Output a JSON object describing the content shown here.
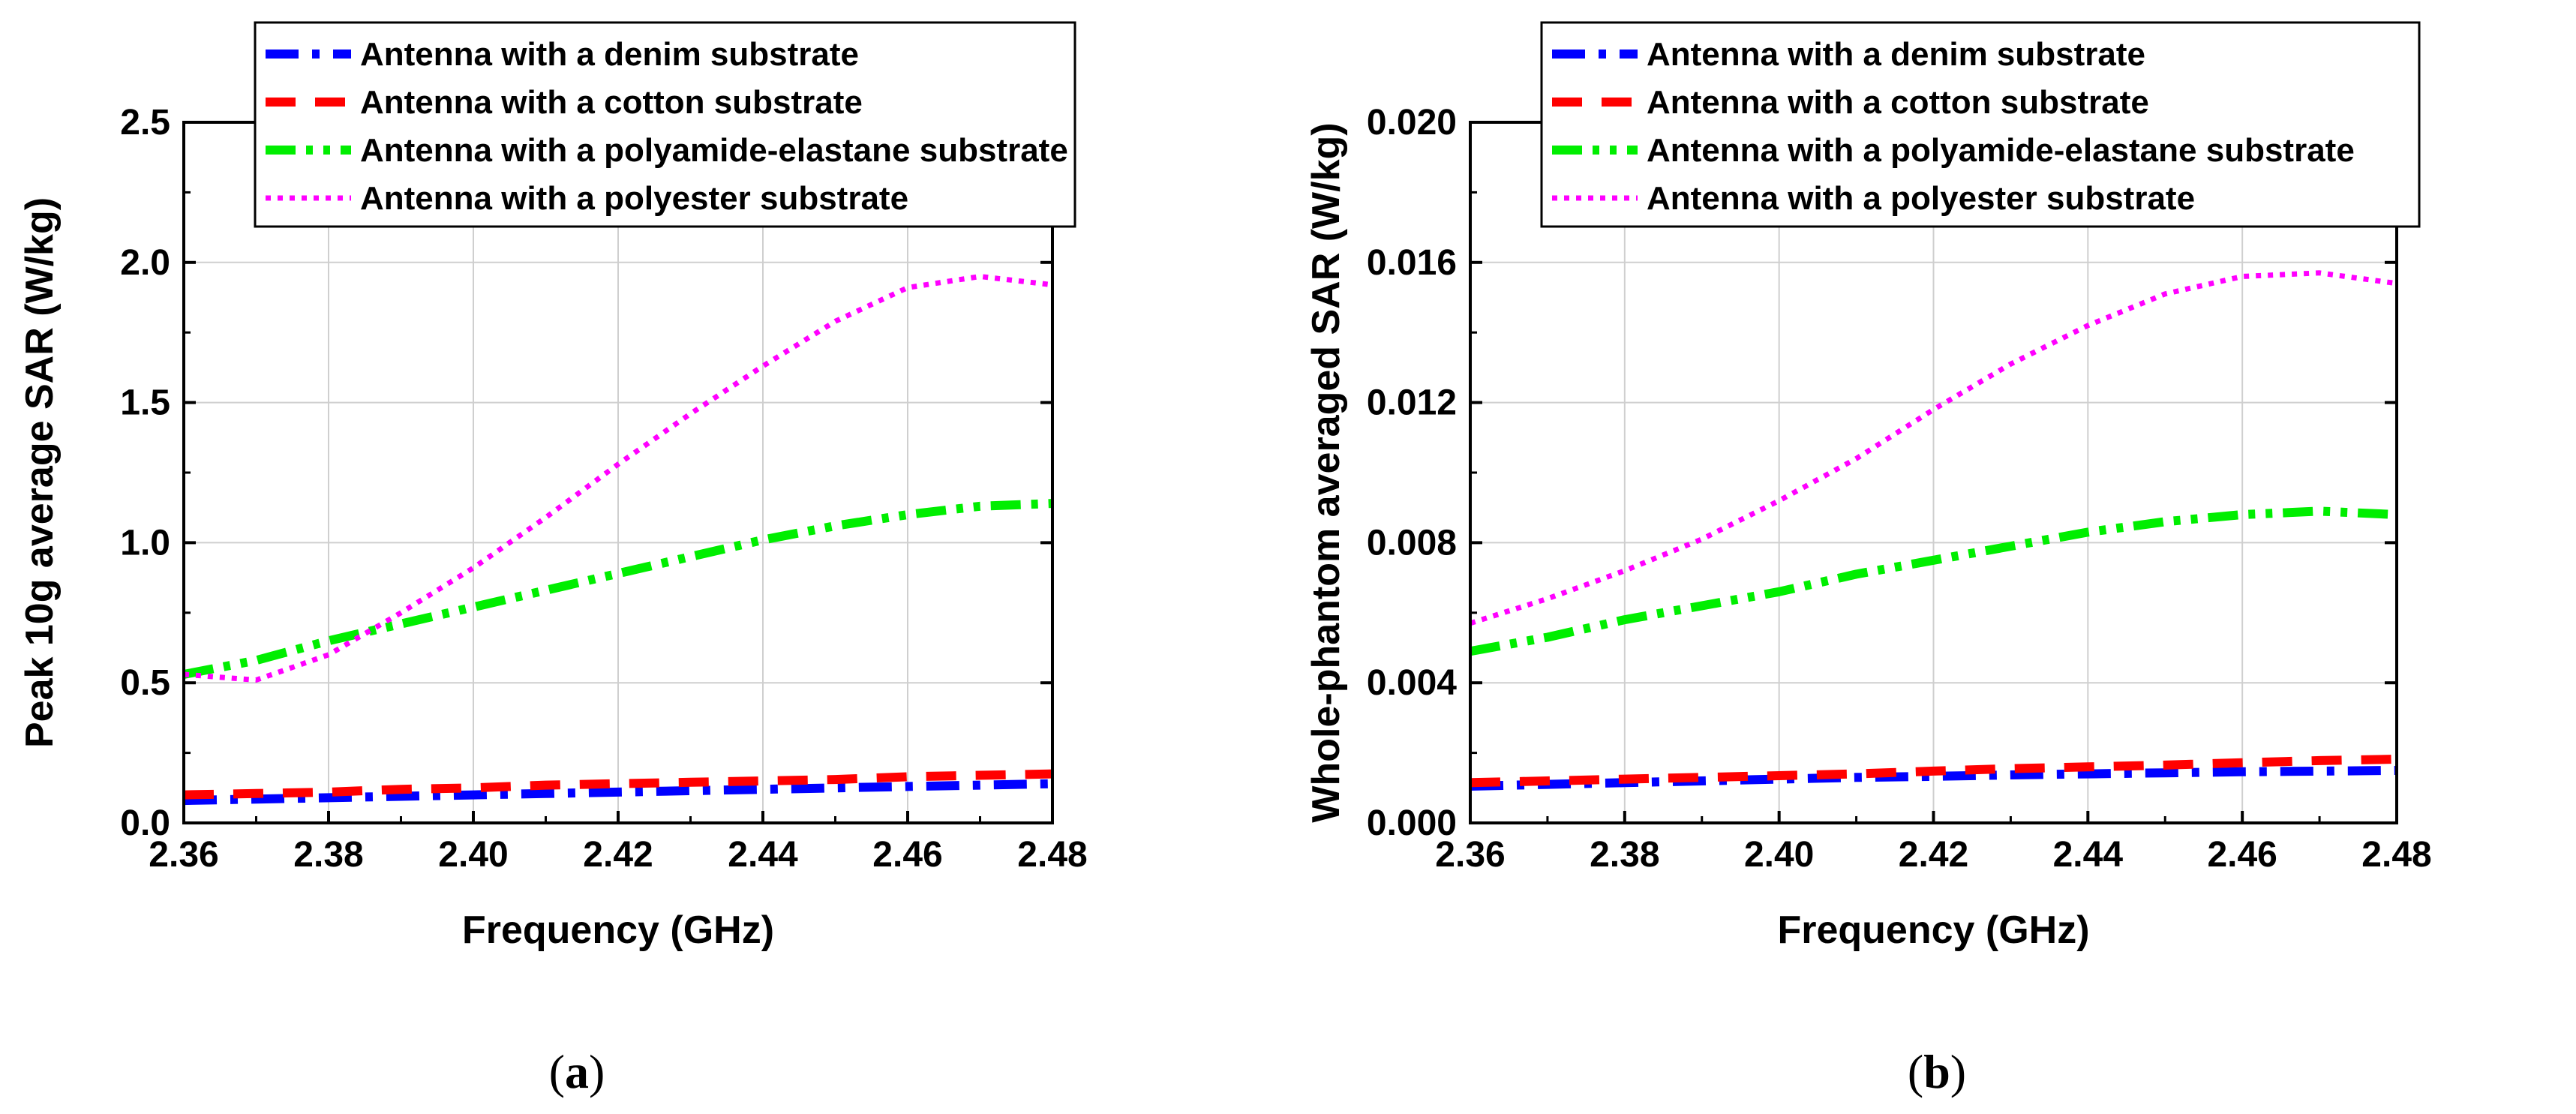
{
  "chart_data": [
    {
      "type": "line",
      "caption_open": "(",
      "caption_letter": "a",
      "caption_close": ")",
      "xlabel": "Frequency (GHz)",
      "ylabel": "Peak 10g average SAR (W/kg)",
      "xlim": [
        2.36,
        2.48
      ],
      "ylim": [
        0.0,
        2.5
      ],
      "xticks": [
        2.36,
        2.38,
        2.4,
        2.42,
        2.44,
        2.46,
        2.48
      ],
      "xtick_labels": [
        "2.36",
        "2.38",
        "2.40",
        "2.42",
        "2.44",
        "2.46",
        "2.48"
      ],
      "yticks": [
        0.0,
        0.5,
        1.0,
        1.5,
        2.0,
        2.5
      ],
      "ytick_labels": [
        "0.0",
        "0.5",
        "1.0",
        "1.5",
        "2.0",
        "2.5"
      ],
      "grid": true,
      "legend_position": "top-right",
      "x": [
        2.36,
        2.37,
        2.38,
        2.39,
        2.4,
        2.41,
        2.42,
        2.43,
        2.44,
        2.45,
        2.46,
        2.47,
        2.48
      ],
      "series": [
        {
          "name": "Antenna with a denim substrate",
          "color": "#0000ff",
          "style": "dashdot",
          "values": [
            0.08,
            0.085,
            0.09,
            0.095,
            0.1,
            0.105,
            0.11,
            0.115,
            0.12,
            0.125,
            0.13,
            0.135,
            0.14
          ]
        },
        {
          "name": "Antenna with a cotton substrate",
          "color": "#ff0000",
          "style": "dash",
          "values": [
            0.1,
            0.105,
            0.11,
            0.12,
            0.125,
            0.135,
            0.14,
            0.145,
            0.15,
            0.155,
            0.165,
            0.17,
            0.175
          ]
        },
        {
          "name": "Antenna with a polyamide-elastane substrate",
          "color": "#00ee00",
          "style": "dashdotdot",
          "values": [
            0.53,
            0.58,
            0.65,
            0.71,
            0.77,
            0.83,
            0.89,
            0.95,
            1.01,
            1.06,
            1.1,
            1.13,
            1.14
          ]
        },
        {
          "name": "Antenna with a polyester substrate",
          "color": "#ff00ff",
          "style": "dot",
          "values": [
            0.53,
            0.51,
            0.6,
            0.75,
            0.91,
            1.09,
            1.28,
            1.46,
            1.63,
            1.79,
            1.91,
            1.95,
            1.92
          ]
        }
      ]
    },
    {
      "type": "line",
      "caption_open": "(",
      "caption_letter": "b",
      "caption_close": ")",
      "xlabel": "Frequency (GHz)",
      "ylabel": "Whole-phantom averaged SAR (W/kg)",
      "xlim": [
        2.36,
        2.48
      ],
      "ylim": [
        0.0,
        0.02
      ],
      "xticks": [
        2.36,
        2.38,
        2.4,
        2.42,
        2.44,
        2.46,
        2.48
      ],
      "xtick_labels": [
        "2.36",
        "2.38",
        "2.40",
        "2.42",
        "2.44",
        "2.46",
        "2.48"
      ],
      "yticks": [
        0.0,
        0.004,
        0.008,
        0.012,
        0.016,
        0.02
      ],
      "ytick_labels": [
        "0.000",
        "0.004",
        "0.008",
        "0.012",
        "0.016",
        "0.020"
      ],
      "grid": true,
      "legend_position": "top-right",
      "x": [
        2.36,
        2.37,
        2.38,
        2.39,
        2.4,
        2.41,
        2.42,
        2.43,
        2.44,
        2.45,
        2.46,
        2.47,
        2.48
      ],
      "series": [
        {
          "name": "Antenna with a denim substrate",
          "color": "#0000ff",
          "style": "dashdot",
          "values": [
            0.00105,
            0.0011,
            0.00115,
            0.0012,
            0.00125,
            0.0013,
            0.00133,
            0.00137,
            0.0014,
            0.00143,
            0.00146,
            0.00148,
            0.0015
          ]
        },
        {
          "name": "Antenna with a cotton substrate",
          "color": "#ff0000",
          "style": "dash",
          "values": [
            0.00115,
            0.0012,
            0.00125,
            0.0013,
            0.00135,
            0.0014,
            0.00148,
            0.00155,
            0.0016,
            0.00165,
            0.00172,
            0.00178,
            0.00182
          ]
        },
        {
          "name": "Antenna with a polyamide-elastane substrate",
          "color": "#00ee00",
          "style": "dashdotdot",
          "values": [
            0.0049,
            0.0053,
            0.0058,
            0.0062,
            0.0066,
            0.0071,
            0.0075,
            0.0079,
            0.0083,
            0.0086,
            0.0088,
            0.0089,
            0.0088
          ]
        },
        {
          "name": "Antenna with a polyester substrate",
          "color": "#ff00ff",
          "style": "dot",
          "values": [
            0.0057,
            0.0064,
            0.0072,
            0.0081,
            0.0092,
            0.0104,
            0.0118,
            0.0131,
            0.0142,
            0.0151,
            0.0156,
            0.0157,
            0.0154
          ]
        }
      ]
    }
  ]
}
